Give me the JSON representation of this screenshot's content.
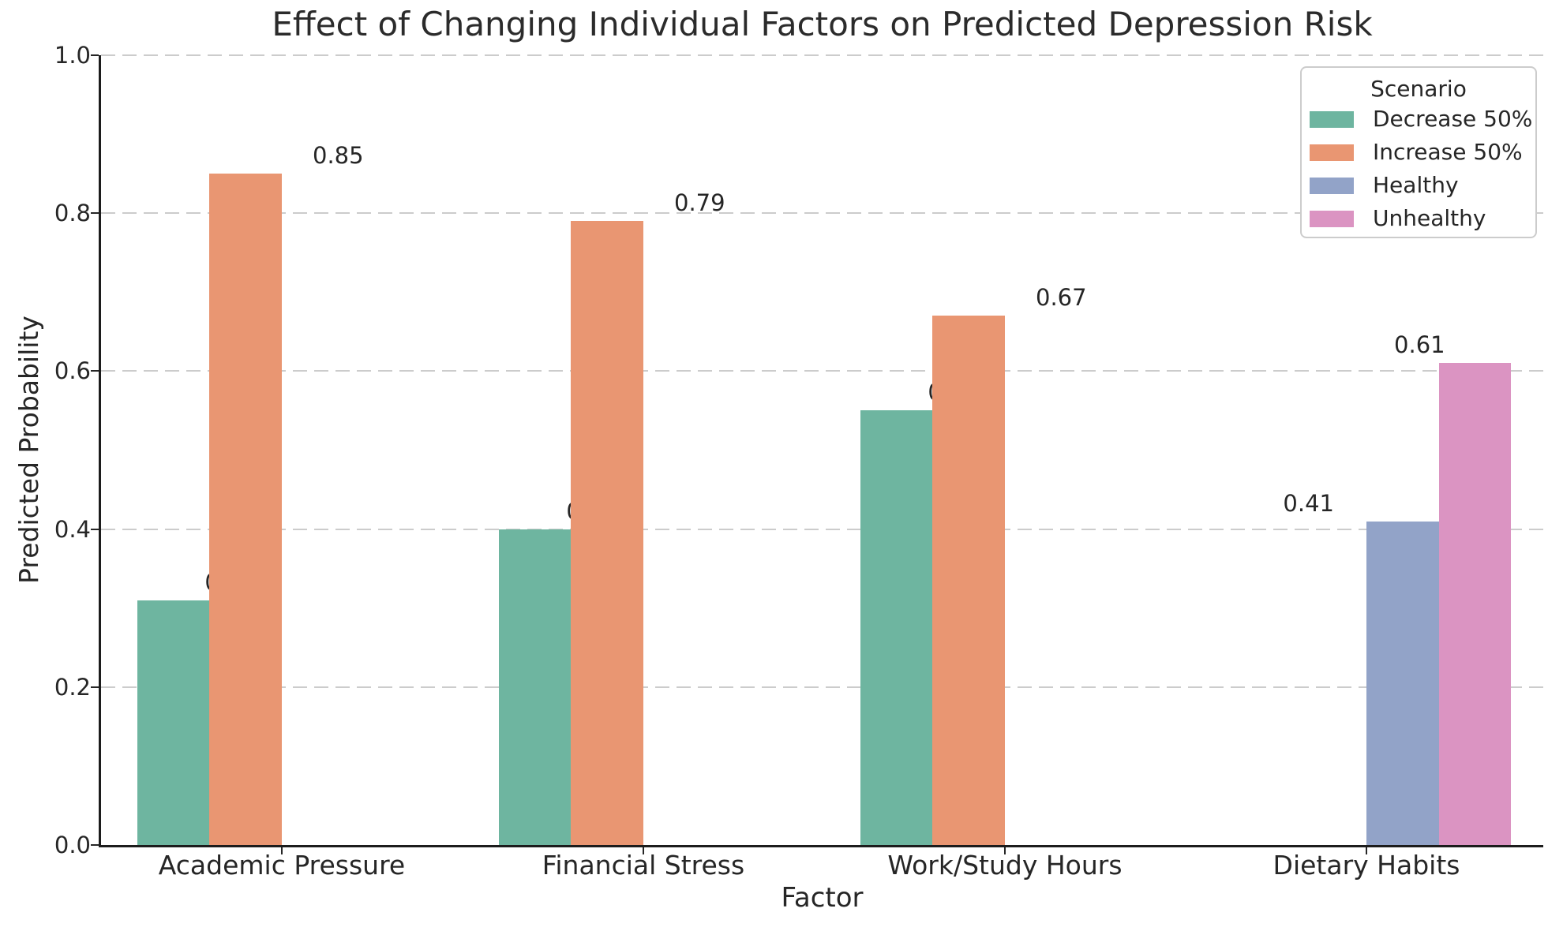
{
  "figure": {
    "background": "#ffffff"
  },
  "chart_data": {
    "type": "bar",
    "title": "Effect of Changing Individual Factors on Predicted Depression Risk",
    "xlabel": "Factor",
    "ylabel": "Predicted Probability",
    "ylim": [
      0.0,
      1.0
    ],
    "yticks": [
      0.0,
      0.2,
      0.4,
      0.6,
      0.8,
      1.0
    ],
    "ytick_labels": [
      "0.0",
      "0.2",
      "0.4",
      "0.6",
      "0.8",
      "1.0"
    ],
    "grid": {
      "axis": "y",
      "style": "dashed",
      "color": "#cccccc"
    },
    "categories": [
      "Academic Pressure",
      "Financial Stress",
      "Work/Study Hours",
      "Dietary Habits"
    ],
    "legend": {
      "title": "Scenario",
      "position": "upper right"
    },
    "series": [
      {
        "name": "Decrease 50%",
        "color": "#6eb5a0",
        "values": [
          0.31,
          0.4,
          0.55,
          null
        ]
      },
      {
        "name": "Increase 50%",
        "color": "#e99672",
        "values": [
          0.85,
          0.79,
          0.67,
          null
        ]
      },
      {
        "name": "Healthy",
        "color": "#92a3c8",
        "values": [
          null,
          null,
          null,
          0.41
        ]
      },
      {
        "name": "Unhealthy",
        "color": "#db94c2",
        "values": [
          null,
          null,
          null,
          0.61
        ]
      }
    ],
    "bar_value_labels": [
      "0.31",
      "0.85",
      "0.40",
      "0.79",
      "0.55",
      "0.67",
      "0.41",
      "0.61"
    ],
    "colors": {
      "text": "#262626",
      "spine": "#1c1c1c",
      "grid": "#cccccc",
      "legend_border": "#cccccc"
    }
  }
}
